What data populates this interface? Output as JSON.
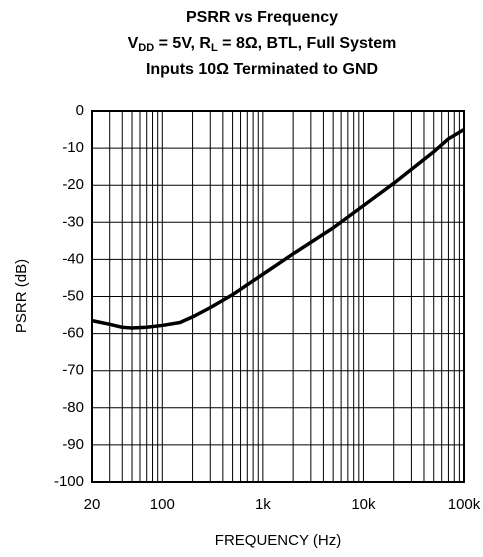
{
  "chart_data": {
    "type": "line",
    "title": "PSRR vs Frequency",
    "subtitle": [
      "V",
      "DD",
      " = 5V, R",
      "L",
      " = 8Ω, BTL, Full System"
    ],
    "subtitle2": "Inputs 10Ω Terminated to GND",
    "xlabel": "FREQUENCY (Hz)",
    "ylabel": "PSRR (dB)",
    "xscale": "log",
    "xlim": [
      20,
      100000
    ],
    "ylim": [
      -100,
      0
    ],
    "xticks": [
      20,
      100,
      {
        "value": 1000,
        "label": "1k"
      },
      {
        "value": 10000,
        "label": "10k"
      },
      {
        "value": 100000,
        "label": "100k"
      }
    ],
    "xgrid": [
      30,
      40,
      50,
      60,
      70,
      80,
      90,
      200,
      300,
      400,
      500,
      600,
      700,
      800,
      900,
      2000,
      3000,
      4000,
      5000,
      6000,
      7000,
      8000,
      9000,
      20000,
      30000,
      40000,
      50000,
      60000,
      70000,
      80000,
      90000
    ],
    "yticks": [
      -100,
      -90,
      -80,
      -70,
      -60,
      -50,
      -40,
      -30,
      -20,
      -10,
      0
    ],
    "grid": true,
    "color": "#000000",
    "x": [
      20,
      30,
      40,
      50,
      70,
      100,
      150,
      200,
      300,
      500,
      1000,
      2000,
      5000,
      10000,
      20000,
      50000,
      70000,
      100000
    ],
    "values": [
      -56.5,
      -57.5,
      -58.3,
      -58.5,
      -58.3,
      -57.8,
      -57,
      -55.5,
      -53,
      -49.5,
      -44,
      -38.5,
      -31.5,
      -25.5,
      -19.5,
      -11,
      -7.5,
      -5
    ]
  }
}
